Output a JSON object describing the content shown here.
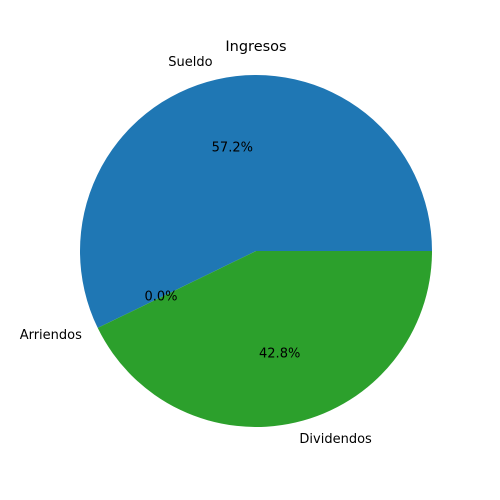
{
  "chart_data": {
    "type": "pie",
    "title": "Ingresos",
    "start_angle_deg": 0,
    "direction": "counterclockwise",
    "slices": [
      {
        "label": "Sueldo",
        "value": 57.2,
        "pct_label": "57.2%",
        "color": "#1f77b4"
      },
      {
        "label": "Arriendos",
        "value": 0.0,
        "pct_label": "0.0%",
        "color": "#ff7f0e"
      },
      {
        "label": "Dividendos",
        "value": 42.8,
        "pct_label": "42.8%",
        "color": "#2ca02c"
      }
    ]
  }
}
